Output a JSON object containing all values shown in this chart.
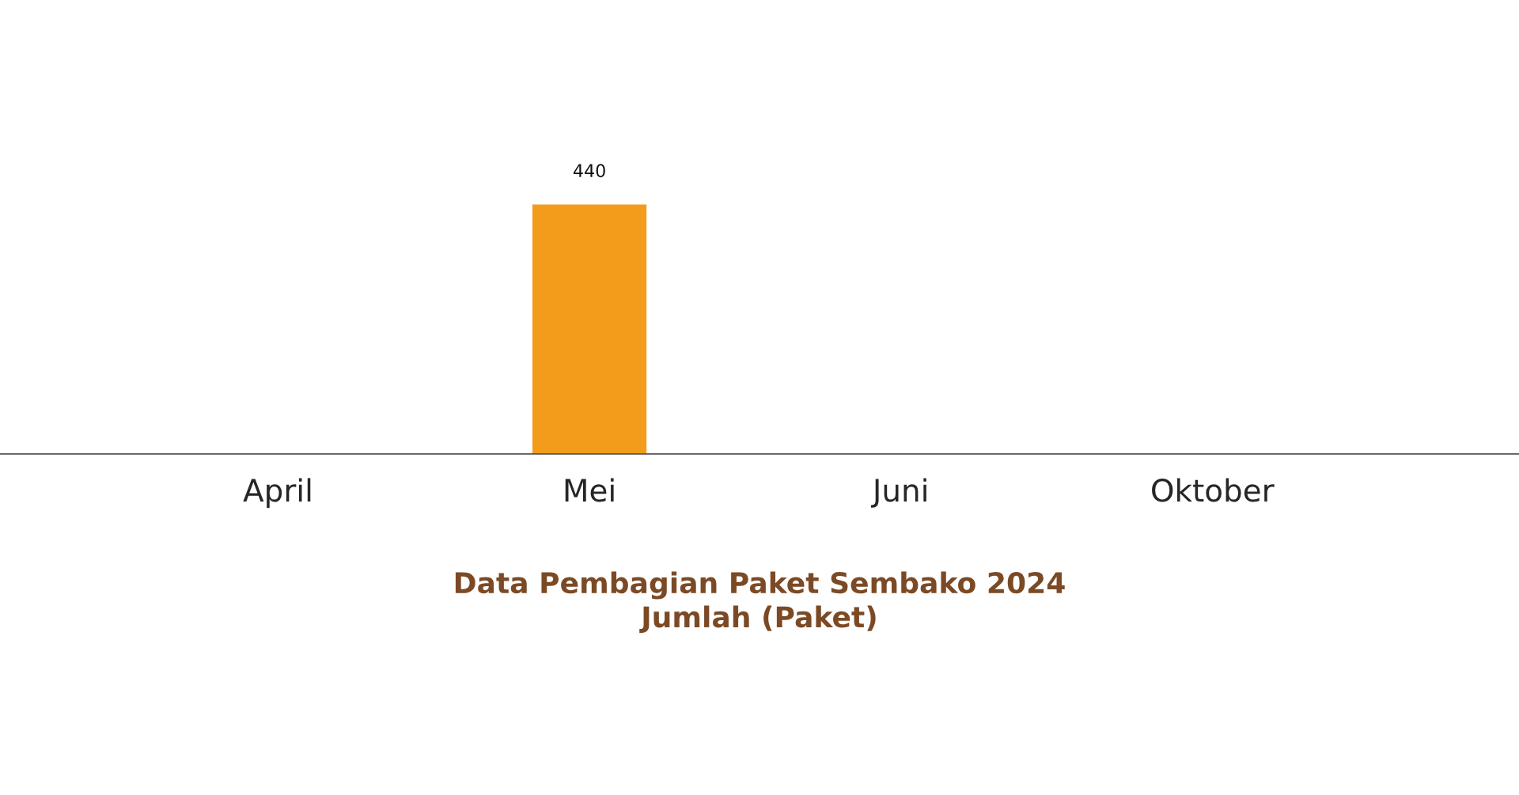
{
  "chart_data": {
    "type": "bar",
    "title": "Data Pembagian Paket Sembako 2024",
    "subtitle": "Jumlah (Paket)",
    "categories": [
      "April",
      "Mei",
      "Juni",
      "Oktober"
    ],
    "values": [
      null,
      440,
      null,
      null
    ],
    "color": "#f39c1c",
    "data_labels": true,
    "grid": false,
    "legend": false
  }
}
